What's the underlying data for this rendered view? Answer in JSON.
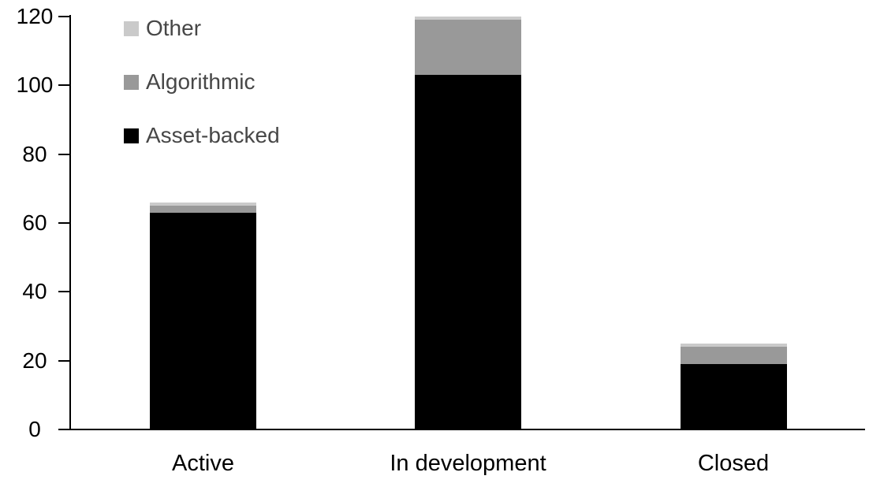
{
  "chart_data": {
    "type": "bar",
    "stacked": true,
    "title": "",
    "xlabel": "",
    "ylabel": "",
    "categories": [
      "Active",
      "In development",
      "Closed"
    ],
    "series": [
      {
        "name": "Asset-backed",
        "color": "#000000",
        "values": [
          63,
          103,
          19
        ]
      },
      {
        "name": "Algorithmic",
        "color": "#999999",
        "values": [
          2,
          16,
          5
        ]
      },
      {
        "name": "Other",
        "color": "#cacaca",
        "values": [
          1,
          1,
          1
        ]
      }
    ],
    "totals": [
      66,
      120,
      25
    ],
    "ylim": [
      0,
      120
    ],
    "yticks": [
      0,
      20,
      40,
      60,
      80,
      100,
      120
    ],
    "grid": false,
    "legend_position": "top-left",
    "legend_order": [
      "Other",
      "Algorithmic",
      "Asset-backed"
    ]
  },
  "colors": {
    "axis": "#000000",
    "tick_label": "#000000",
    "category_label": "#000000",
    "legend_text": "#474747",
    "background": "#ffffff"
  }
}
